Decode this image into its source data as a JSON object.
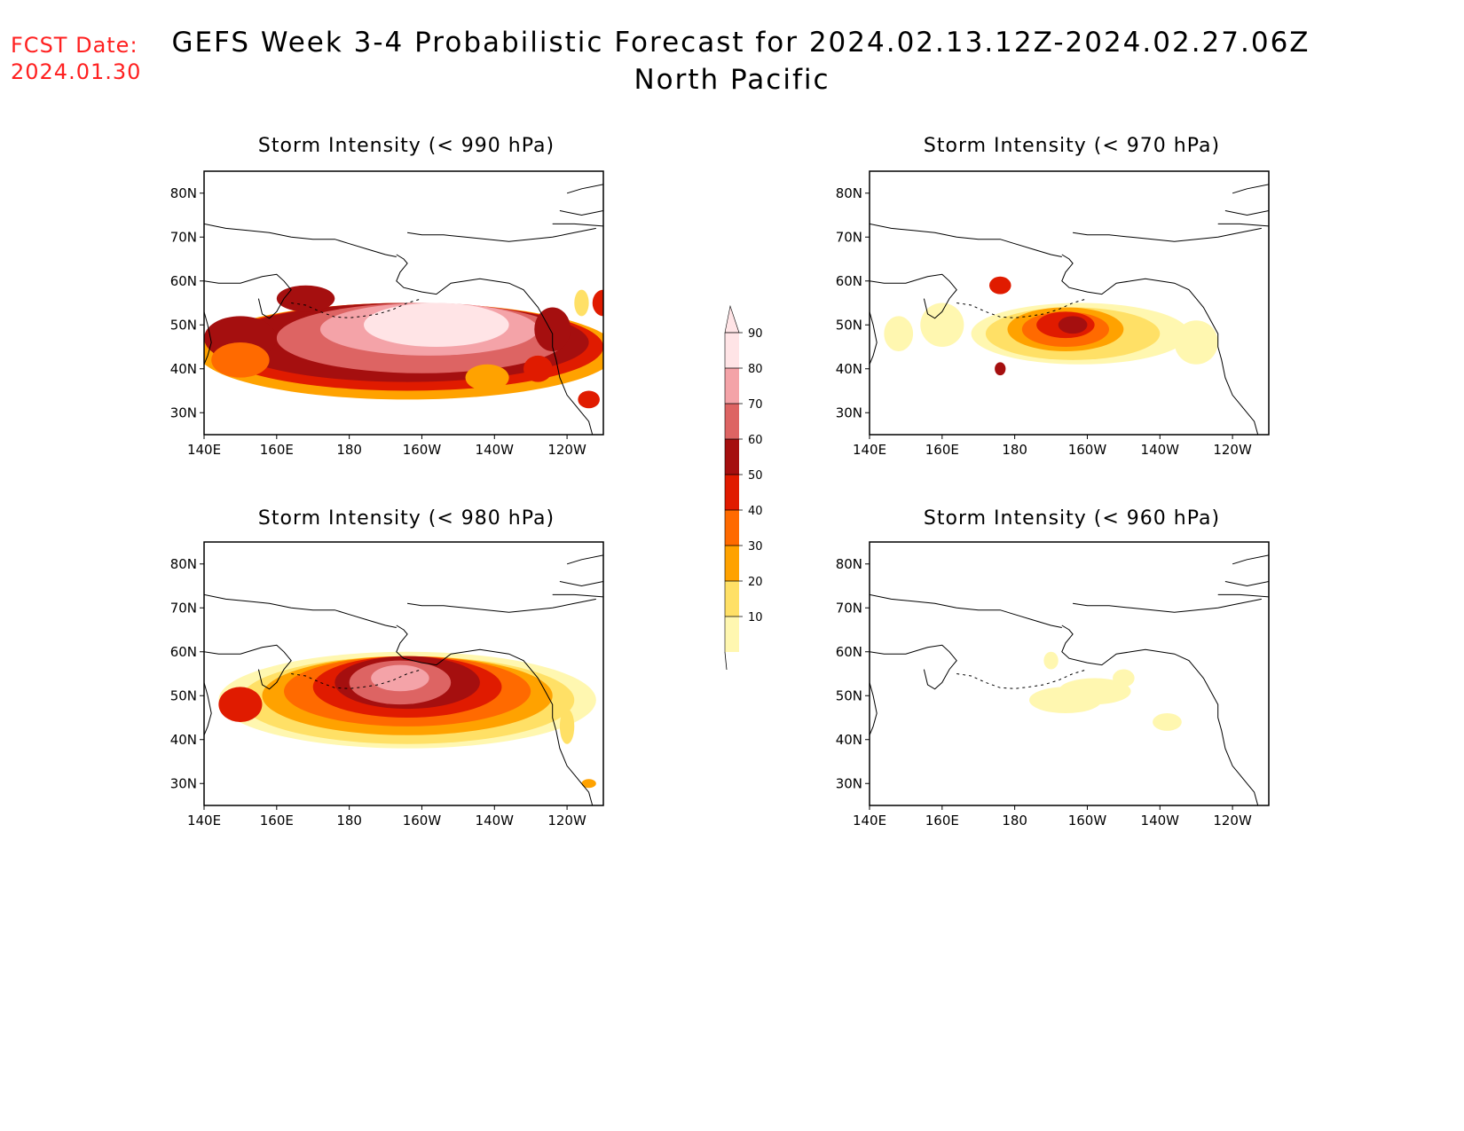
{
  "header": {
    "fcst_label": "FCST Date:",
    "fcst_date": "2024.01.30",
    "title": "GEFS Week 3-4 Probabilistic Forecast for 2024.02.13.12Z-2024.02.27.06Z",
    "region": "North Pacific"
  },
  "axes": {
    "x_ticks": [
      "140E",
      "160E",
      "180",
      "160W",
      "140W",
      "120W"
    ],
    "y_ticks": [
      "80N",
      "70N",
      "60N",
      "50N",
      "40N",
      "30N"
    ]
  },
  "colorbar": {
    "levels": [
      "90",
      "80",
      "70",
      "60",
      "50",
      "40",
      "30",
      "20",
      "10"
    ],
    "colors": [
      "#ffe4e6",
      "#f4a3a8",
      "#dd6463",
      "#a50f0f",
      "#e01b00",
      "#ff6a00",
      "#ffa200",
      "#ffe066",
      "#fff7b0"
    ]
  },
  "panels": [
    {
      "id": "p990",
      "title": "Storm Intensity (< 990 hPa)"
    },
    {
      "id": "p970",
      "title": "Storm Intensity (< 970 hPa)"
    },
    {
      "id": "p980",
      "title": "Storm Intensity (< 980 hPa)"
    },
    {
      "id": "p960",
      "title": "Storm Intensity (< 960 hPa)"
    }
  ]
}
